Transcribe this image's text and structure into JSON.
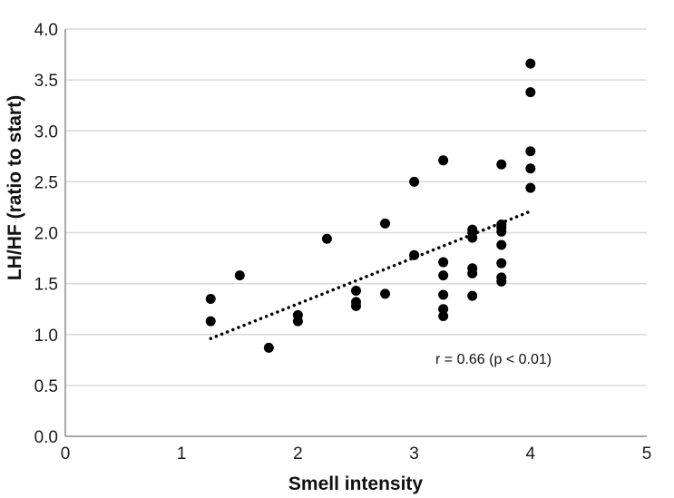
{
  "chart_data": {
    "type": "scatter",
    "title": "",
    "xlabel": "Smell intensity",
    "ylabel": "LH/HF (ratio to start)",
    "xlim": [
      0,
      5
    ],
    "ylim": [
      0,
      4.0
    ],
    "x_ticks": [
      "0",
      "1",
      "2",
      "3",
      "4",
      "5"
    ],
    "y_ticks": [
      "0.0",
      "0.5",
      "1.0",
      "1.5",
      "2.0",
      "2.5",
      "3.0",
      "3.5",
      "4.0"
    ],
    "grid": "horizontal",
    "annotation": "r = 0.66 (p < 0.01)",
    "trendline": {
      "style": "dotted",
      "x": [
        1.25,
        4.0
      ],
      "y": [
        0.96,
        2.21
      ]
    },
    "points": [
      {
        "x": 1.25,
        "y": 1.35
      },
      {
        "x": 1.25,
        "y": 1.13
      },
      {
        "x": 1.5,
        "y": 1.58
      },
      {
        "x": 1.75,
        "y": 0.87
      },
      {
        "x": 2.0,
        "y": 1.19
      },
      {
        "x": 2.0,
        "y": 1.13
      },
      {
        "x": 2.25,
        "y": 1.94
      },
      {
        "x": 2.5,
        "y": 1.43
      },
      {
        "x": 2.5,
        "y": 1.32
      },
      {
        "x": 2.5,
        "y": 1.28
      },
      {
        "x": 2.75,
        "y": 2.09
      },
      {
        "x": 2.75,
        "y": 1.4
      },
      {
        "x": 3.0,
        "y": 2.5
      },
      {
        "x": 3.0,
        "y": 1.78
      },
      {
        "x": 3.25,
        "y": 2.71
      },
      {
        "x": 3.25,
        "y": 1.71
      },
      {
        "x": 3.25,
        "y": 1.58
      },
      {
        "x": 3.25,
        "y": 1.39
      },
      {
        "x": 3.25,
        "y": 1.25
      },
      {
        "x": 3.25,
        "y": 1.18
      },
      {
        "x": 3.5,
        "y": 2.03
      },
      {
        "x": 3.5,
        "y": 2.0
      },
      {
        "x": 3.5,
        "y": 1.95
      },
      {
        "x": 3.5,
        "y": 1.65
      },
      {
        "x": 3.5,
        "y": 1.6
      },
      {
        "x": 3.5,
        "y": 1.38
      },
      {
        "x": 3.75,
        "y": 2.67
      },
      {
        "x": 3.75,
        "y": 2.08
      },
      {
        "x": 3.75,
        "y": 2.05
      },
      {
        "x": 3.75,
        "y": 2.01
      },
      {
        "x": 3.75,
        "y": 1.88
      },
      {
        "x": 3.75,
        "y": 1.7
      },
      {
        "x": 3.75,
        "y": 1.56
      },
      {
        "x": 3.75,
        "y": 1.52
      },
      {
        "x": 4.0,
        "y": 3.66
      },
      {
        "x": 4.0,
        "y": 3.38
      },
      {
        "x": 4.0,
        "y": 2.8
      },
      {
        "x": 4.0,
        "y": 2.63
      },
      {
        "x": 4.0,
        "y": 2.44
      }
    ],
    "colors": {
      "points": "#000000",
      "grid": "#d9d9d9",
      "axis": "#8c8c8c",
      "trendline": "#000000"
    }
  }
}
